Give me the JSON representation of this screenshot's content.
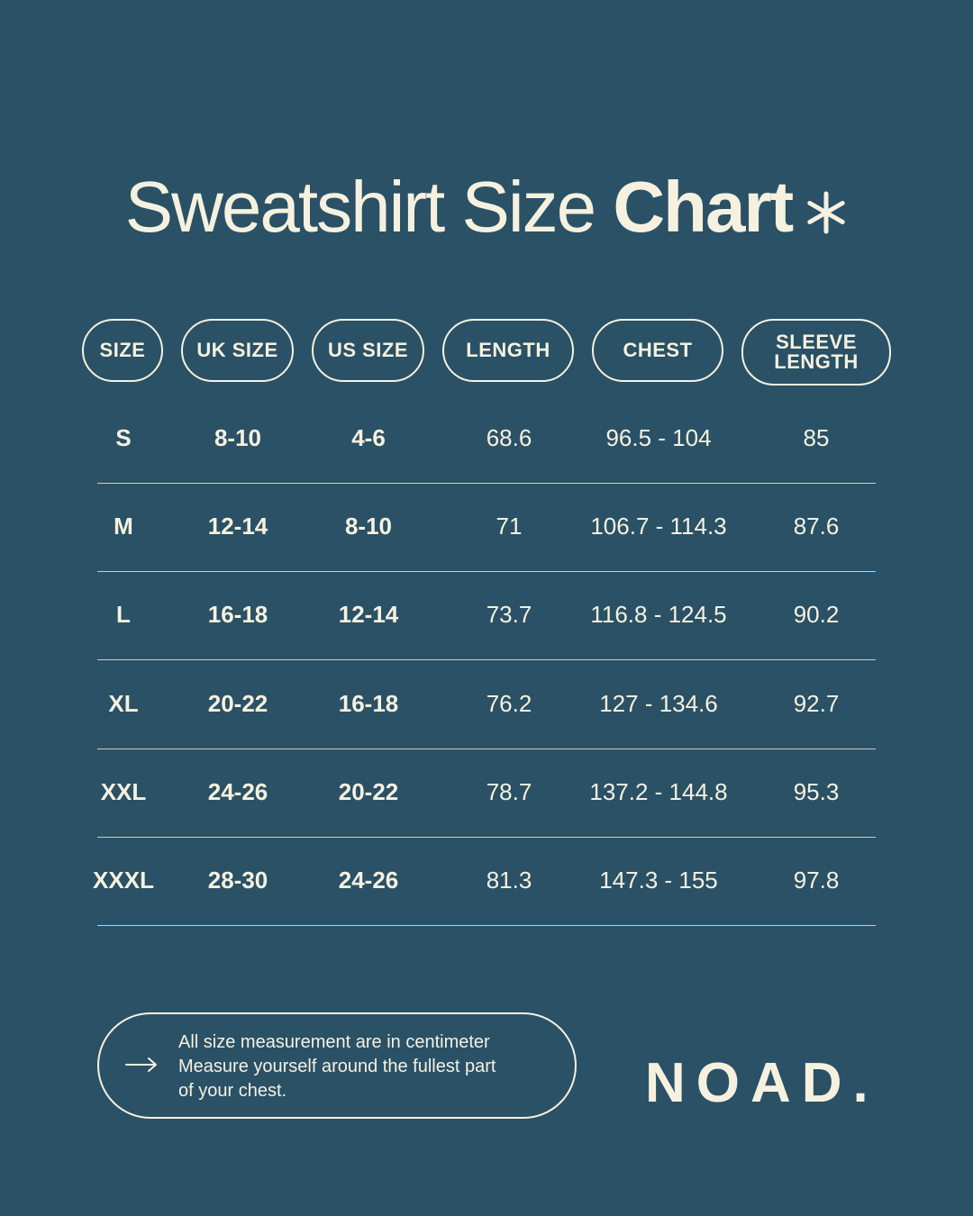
{
  "title": {
    "light": "Sweatshirt Size ",
    "bold": "Chart",
    "icon": "asterisk-icon"
  },
  "table": {
    "headers": [
      [
        "SIZE"
      ],
      [
        "UK SIZE"
      ],
      [
        "US SIZE"
      ],
      [
        "LENGTH"
      ],
      [
        "CHEST"
      ],
      [
        "SLEEVE",
        "LENGTH"
      ]
    ],
    "rows": [
      [
        "S",
        "8-10",
        "4-6",
        "68.6",
        "96.5 - 104",
        "85"
      ],
      [
        "M",
        "12-14",
        "8-10",
        "71",
        "106.7 - 114.3",
        "87.6"
      ],
      [
        "L",
        "16-18",
        "12-14",
        "73.7",
        "116.8 - 124.5",
        "90.2"
      ],
      [
        "XL",
        "20-22",
        "16-18",
        "76.2",
        "127 - 134.6",
        "92.7"
      ],
      [
        "XXL",
        "24-26",
        "20-22",
        "78.7",
        "137.2 - 144.8",
        "95.3"
      ],
      [
        "XXXL",
        "28-30",
        "24-26",
        "81.3",
        "147.3 - 155",
        "97.8"
      ]
    ]
  },
  "note": {
    "icon": "arrow-right-icon",
    "lines": [
      "All size measurement are in centimeter",
      "Measure yourself around the fullest part",
      "of your chest."
    ]
  },
  "brand": "NOAD.",
  "colors": {
    "background": "#2a5166",
    "foreground": "#f6f1df"
  }
}
